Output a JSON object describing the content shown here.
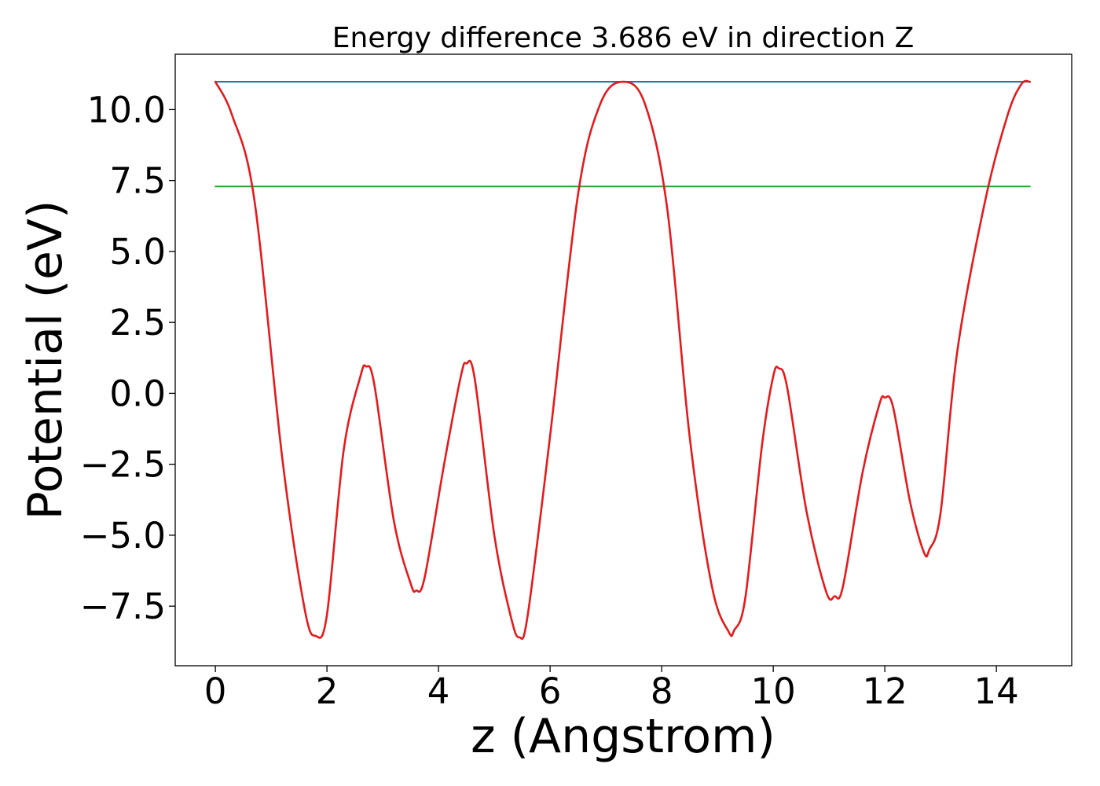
{
  "chart_data": {
    "type": "line",
    "title": "Energy difference 3.686 eV in direction Z",
    "xlabel": "z (Angstrom)",
    "ylabel": "Potential (eV)",
    "xlim": [
      -0.72,
      15.35
    ],
    "ylim": [
      -9.6,
      11.95
    ],
    "x_ticks": [
      0,
      2,
      4,
      6,
      8,
      10,
      12,
      14
    ],
    "x_tick_labels": [
      "0",
      "2",
      "4",
      "6",
      "8",
      "10",
      "12",
      "14"
    ],
    "y_ticks": [
      10.0,
      7.5,
      5.0,
      2.5,
      0.0,
      -2.5,
      -5.0,
      -7.5
    ],
    "y_tick_labels": [
      "10.0",
      "7.5",
      "5.0",
      "2.5",
      "0.0",
      "−2.5",
      "−5.0",
      "−7.5"
    ],
    "grid": false,
    "series": [
      {
        "color": "#1f77b4",
        "style": "horizontal",
        "x": [
          0,
          14.6
        ],
        "y": [
          10.98,
          10.98
        ]
      },
      {
        "color": "#2ca02c",
        "style": "horizontal",
        "x": [
          0,
          14.6
        ],
        "y": [
          7.29,
          7.29
        ]
      },
      {
        "color": "#e41a1c",
        "style": "curve",
        "x": [
          0.0,
          0.3,
          0.7,
          1.2,
          1.6,
          1.8,
          2.0,
          2.3,
          2.6,
          2.7,
          2.85,
          3.2,
          3.5,
          3.6,
          3.75,
          4.1,
          4.4,
          4.5,
          4.65,
          5.0,
          5.3,
          5.45,
          5.6,
          6.0,
          6.5,
          6.9,
          7.3,
          7.7,
          8.1,
          8.5,
          8.9,
          9.2,
          9.3,
          9.5,
          9.8,
          10.0,
          10.1,
          10.25,
          10.6,
          10.95,
          11.1,
          11.25,
          11.6,
          11.9,
          12.0,
          12.15,
          12.45,
          12.7,
          12.8,
          13.0,
          13.3,
          13.8,
          14.2,
          14.45,
          14.6
        ],
        "y": [
          10.98,
          9.8,
          6.8,
          -2.3,
          -7.6,
          -8.55,
          -7.8,
          -2.0,
          0.6,
          0.95,
          0.3,
          -4.5,
          -6.7,
          -6.95,
          -6.5,
          -2.5,
          0.6,
          1.05,
          0.5,
          -5.0,
          -7.9,
          -8.6,
          -7.8,
          -1.5,
          7.0,
          10.2,
          10.98,
          10.2,
          6.5,
          -1.5,
          -6.8,
          -8.4,
          -8.35,
          -7.2,
          -1.8,
          0.6,
          0.88,
          0.2,
          -4.2,
          -7.0,
          -7.15,
          -6.8,
          -2.8,
          -0.4,
          -0.15,
          -0.5,
          -3.8,
          -5.6,
          -5.5,
          -4.2,
          1.5,
          6.8,
          9.8,
          10.9,
          10.98
        ]
      }
    ]
  }
}
